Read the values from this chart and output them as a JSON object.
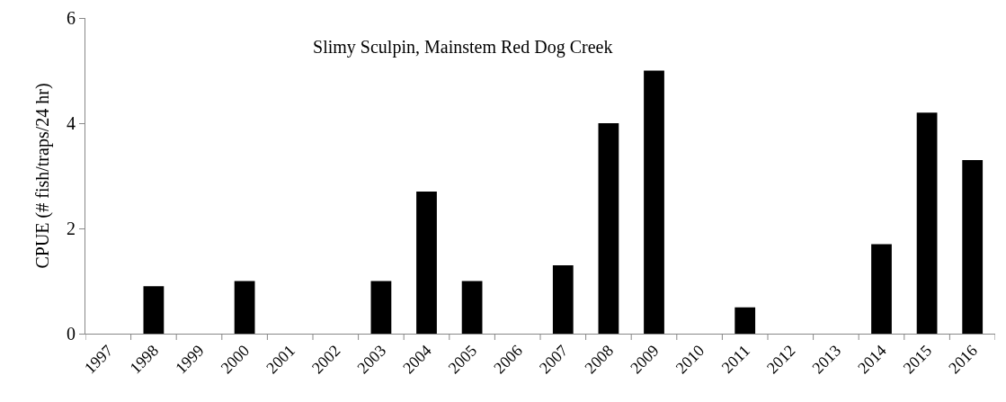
{
  "chart_data": {
    "type": "bar",
    "title": "Slimy Sculpin, Mainstem Red Dog Creek",
    "ylabel": "CPUE (# fish/traps/24 hr)",
    "categories": [
      "1997",
      "1998",
      "1999",
      "2000",
      "2001",
      "2002",
      "2003",
      "2004",
      "2005",
      "2006",
      "2007",
      "2008",
      "2009",
      "2010",
      "2011",
      "2012",
      "2013",
      "2014",
      "2015",
      "2016"
    ],
    "values": [
      0,
      0.9,
      0,
      1.0,
      0,
      0,
      1.0,
      2.7,
      1.0,
      0,
      1.3,
      4.0,
      5.0,
      0,
      0.5,
      0,
      0,
      1.7,
      4.2,
      3.3
    ],
    "color": "#000000",
    "ylim": [
      0,
      6
    ],
    "yticks": [
      0,
      2,
      4,
      6
    ],
    "grid": false
  }
}
